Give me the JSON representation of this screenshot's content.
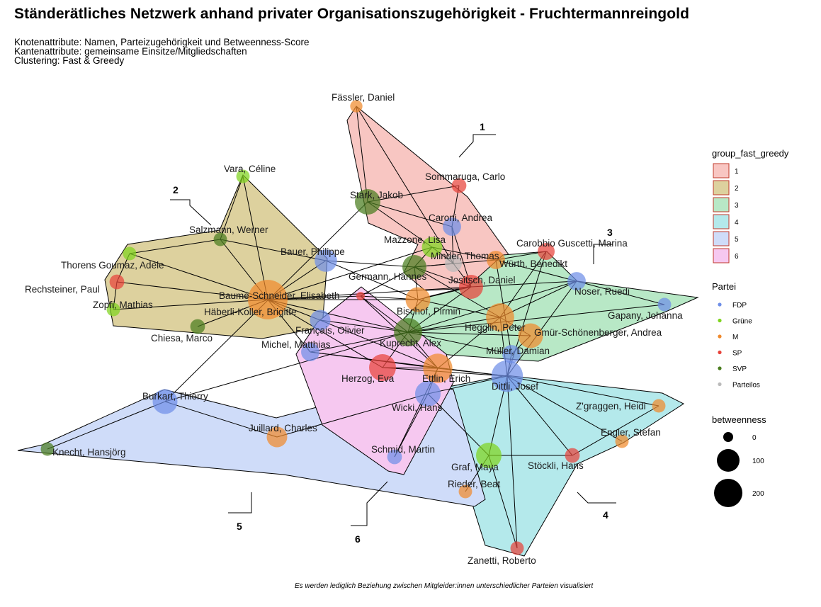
{
  "title": "Ständerätliches Netzwerk anhand privater Organisationszugehörigkeit - Fruchtermannreingold",
  "subtitle_lines": [
    "Knotenattribute: Namen, Parteizugehörigkeit und Betweenness-Score",
    "Kantenattribute: gemeinsame Einsitze/Mitgliedschaften",
    "Clustering: Fast & Greedy"
  ],
  "caption": "Es werden lediglich Beziehung zwischen Mitgleider:innen unterschiedlicher Parteien visualisiert",
  "colors": {
    "group_1": "#f8c6c2",
    "group_2": "#ddd19e",
    "group_3": "#b8e8c6",
    "group_4": "#b4e9eb",
    "group_5": "#cfdcf9",
    "group_6": "#f6c8f0",
    "FDP": "#6f8fe8",
    "Grüne": "#7fd41f",
    "M": "#f08a2c",
    "SP": "#e8423a",
    "SVP": "#4a7d1e",
    "Parteilos": "#bbbbbb"
  },
  "legend": {
    "group_title": "group_fast_greedy",
    "groups": [
      "1",
      "2",
      "3",
      "4",
      "5",
      "6"
    ],
    "party_title": "Partei",
    "parties": [
      "FDP",
      "Grüne",
      "M",
      "SP",
      "SVP",
      "Parteilos"
    ],
    "betweenness_title": "betweenness",
    "betweenness_values": [
      "0",
      "100",
      "200"
    ]
  },
  "group_labels": [
    "1",
    "2",
    "3",
    "4",
    "5",
    "6"
  ],
  "nodes": [
    {
      "name": "Fässler, Daniel",
      "party": "M",
      "group": "1",
      "betweenness": 3
    },
    {
      "name": "Sommaruga, Carlo",
      "party": "SP",
      "group": "1",
      "betweenness": 8
    },
    {
      "name": "Stark, Jakob",
      "party": "SVP",
      "group": "1",
      "betweenness": 60
    },
    {
      "name": "Caroni, Andrea",
      "party": "FDP",
      "group": "1",
      "betweenness": 20
    },
    {
      "name": "Mazzone, Lisa",
      "party": "Grüne",
      "group": "1",
      "betweenness": 30
    },
    {
      "name": "Minder, Thomas",
      "party": "Parteilos",
      "group": "1",
      "betweenness": 15
    },
    {
      "name": "Germann, Hannes",
      "party": "SVP",
      "group": "1",
      "betweenness": 50
    },
    {
      "name": "Jositsch, Daniel",
      "party": "SP",
      "group": "1",
      "betweenness": 50
    },
    {
      "name": "Bischof, Pirmin",
      "party": "M",
      "group": "1",
      "betweenness": 55
    },
    {
      "name": "Vara, Céline",
      "party": "Grüne",
      "group": "2",
      "betweenness": 5
    },
    {
      "name": "Salzmann, Werner",
      "party": "SVP",
      "group": "2",
      "betweenness": 5
    },
    {
      "name": "Bauer, Philippe",
      "party": "FDP",
      "group": "2",
      "betweenness": 40
    },
    {
      "name": "Thorens Goumaz, Adèle",
      "party": "Grüne",
      "group": "2",
      "betweenness": 5
    },
    {
      "name": "Rechsteiner, Paul",
      "party": "SP",
      "group": "2",
      "betweenness": 8
    },
    {
      "name": "Zopfi, Mathias",
      "party": "Grüne",
      "group": "2",
      "betweenness": 5
    },
    {
      "name": "Baume-Schneider, Elisabeth",
      "party": "SP",
      "group": "2",
      "betweenness": 0
    },
    {
      "name": "Häberli-Koller, Brigitte",
      "party": "M",
      "group": "2",
      "betweenness": 200
    },
    {
      "name": "Chiesa, Marco",
      "party": "SVP",
      "group": "2",
      "betweenness": 8
    },
    {
      "name": "Français, Olivier",
      "party": "FDP",
      "group": "2",
      "betweenness": 30
    },
    {
      "name": "Carobbio Guscetti, Marina",
      "party": "SP",
      "group": "3",
      "betweenness": 15
    },
    {
      "name": "Würth, Benedikt",
      "party": "M",
      "group": "3",
      "betweenness": 20
    },
    {
      "name": "Noser, Ruedi",
      "party": "FDP",
      "group": "3",
      "betweenness": 20
    },
    {
      "name": "Gapany, Johanna",
      "party": "FDP",
      "group": "3",
      "betweenness": 5
    },
    {
      "name": "Hegglin, Peter",
      "party": "M",
      "group": "3",
      "betweenness": 80
    },
    {
      "name": "Gmür-Schönenberger, Andrea",
      "party": "M",
      "group": "3",
      "betweenness": 55
    },
    {
      "name": "Kuprecht, Alex",
      "party": "SVP",
      "group": "3",
      "betweenness": 80
    },
    {
      "name": "Müller, Damian",
      "party": "FDP",
      "group": "4",
      "betweenness": 20
    },
    {
      "name": "Dittli, Josef",
      "party": "FDP",
      "group": "4",
      "betweenness": 110
    },
    {
      "name": "Z'graggen, Heidi",
      "party": "M",
      "group": "4",
      "betweenness": 5
    },
    {
      "name": "Engler, Stefan",
      "party": "M",
      "group": "4",
      "betweenness": 5
    },
    {
      "name": "Stöckli, Hans",
      "party": "SP",
      "group": "4",
      "betweenness": 8
    },
    {
      "name": "Graf, Maya",
      "party": "Grüne",
      "group": "4",
      "betweenness": 60
    },
    {
      "name": "Rieder, Beat",
      "party": "M",
      "group": "4",
      "betweenness": 5
    },
    {
      "name": "Zanetti, Roberto",
      "party": "SP",
      "group": "4",
      "betweenness": 5
    },
    {
      "name": "Burkart, Thierry",
      "party": "FDP",
      "group": "5",
      "betweenness": 55
    },
    {
      "name": "Juillard, Charles",
      "party": "M",
      "group": "5",
      "betweenness": 30
    },
    {
      "name": "Knecht, Hansjörg",
      "party": "SVP",
      "group": "5",
      "betweenness": 5
    },
    {
      "name": "Wicki, Hans",
      "party": "FDP",
      "group": "5",
      "betweenness": 60
    },
    {
      "name": "Michel, Matthias",
      "party": "FDP",
      "group": "6",
      "betweenness": 20
    },
    {
      "name": "Herzog, Eva",
      "party": "SP",
      "group": "6",
      "betweenness": 70
    },
    {
      "name": "Ettlin, Erich",
      "party": "M",
      "group": "6",
      "betweenness": 90
    },
    {
      "name": "Schmid, Martin",
      "party": "FDP",
      "group": "6",
      "betweenness": 8
    }
  ],
  "edges": [
    [
      "Fässler, Daniel",
      "Stark, Jakob"
    ],
    [
      "Fässler, Daniel",
      "Minder, Thomas"
    ],
    [
      "Sommaruga, Carlo",
      "Stark, Jakob"
    ],
    [
      "Sommaruga, Carlo",
      "Caroni, Andrea"
    ],
    [
      "Stark, Jakob",
      "Caroni, Andrea"
    ],
    [
      "Stark, Jakob",
      "Mazzone, Lisa"
    ],
    [
      "Stark, Jakob",
      "Burkart, Thierry"
    ],
    [
      "Caroni, Andrea",
      "Minder, Thomas"
    ],
    [
      "Caroni, Andrea",
      "Jositsch, Daniel"
    ],
    [
      "Mazzone, Lisa",
      "Minder, Thomas"
    ],
    [
      "Mazzone, Lisa",
      "Germann, Hannes"
    ],
    [
      "Mazzone, Lisa",
      "Würth, Benedikt"
    ],
    [
      "Minder, Thomas",
      "Germann, Hannes"
    ],
    [
      "Minder, Thomas",
      "Jositsch, Daniel"
    ],
    [
      "Germann, Hannes",
      "Jositsch, Daniel"
    ],
    [
      "Germann, Hannes",
      "Bischof, Pirmin"
    ],
    [
      "Germann, Hannes",
      "Baume-Schneider, Elisabeth"
    ],
    [
      "Germann, Hannes",
      "Hegglin, Peter"
    ],
    [
      "Germann, Hannes",
      "Würth, Benedikt"
    ],
    [
      "Jositsch, Daniel",
      "Bischof, Pirmin"
    ],
    [
      "Jositsch, Daniel",
      "Noser, Ruedi"
    ],
    [
      "Jositsch, Daniel",
      "Kuprecht, Alex"
    ],
    [
      "Bischof, Pirmin",
      "Häberli-Koller, Brigitte"
    ],
    [
      "Bischof, Pirmin",
      "Hegglin, Peter"
    ],
    [
      "Bischof, Pirmin",
      "Kuprecht, Alex"
    ],
    [
      "Vara, Céline",
      "Häberli-Koller, Brigitte"
    ],
    [
      "Vara, Céline",
      "Salzmann, Werner"
    ],
    [
      "Salzmann, Werner",
      "Bauer, Philippe"
    ],
    [
      "Salzmann, Werner",
      "Häberli-Koller, Brigitte"
    ],
    [
      "Salzmann, Werner",
      "Thorens Goumaz, Adèle"
    ],
    [
      "Bauer, Philippe",
      "Häberli-Koller, Brigitte"
    ],
    [
      "Bauer, Philippe",
      "Germann, Hannes"
    ],
    [
      "Bauer, Philippe",
      "Bischof, Pirmin"
    ],
    [
      "Thorens Goumaz, Adèle",
      "Häberli-Koller, Brigitte"
    ],
    [
      "Thorens Goumaz, Adèle",
      "Rechsteiner, Paul"
    ],
    [
      "Rechsteiner, Paul",
      "Häberli-Koller, Brigitte"
    ],
    [
      "Rechsteiner, Paul",
      "Zopfi, Mathias"
    ],
    [
      "Zopfi, Mathias",
      "Häberli-Koller, Brigitte"
    ],
    [
      "Chiesa, Marco",
      "Häberli-Koller, Brigitte"
    ],
    [
      "Häberli-Koller, Brigitte",
      "Baume-Schneider, Elisabeth"
    ],
    [
      "Häberli-Koller, Brigitte",
      "Français, Olivier"
    ],
    [
      "Häberli-Koller, Brigitte",
      "Kuprecht, Alex"
    ],
    [
      "Häberli-Koller, Brigitte",
      "Herzog, Eva"
    ],
    [
      "Häberli-Koller, Brigitte",
      "Jositsch, Daniel"
    ],
    [
      "Häberli-Koller, Brigitte",
      "Mazzone, Lisa"
    ],
    [
      "Baume-Schneider, Elisabeth",
      "Bischof, Pirmin"
    ],
    [
      "Baume-Schneider, Elisabeth",
      "Kuprecht, Alex"
    ],
    [
      "Baume-Schneider, Elisabeth",
      "Ettlin, Erich"
    ],
    [
      "Français, Olivier",
      "Kuprecht, Alex"
    ],
    [
      "Français, Olivier",
      "Ettlin, Erich"
    ],
    [
      "Michel, Matthias",
      "Häberli-Koller, Brigitte"
    ],
    [
      "Michel, Matthias",
      "Ettlin, Erich"
    ],
    [
      "Michel, Matthias",
      "Kuprecht, Alex"
    ],
    [
      "Michel, Matthias",
      "Dittli, Josef"
    ],
    [
      "Herzog, Eva",
      "Ettlin, Erich"
    ],
    [
      "Herzog, Eva",
      "Dittli, Josef"
    ],
    [
      "Herzog, Eva",
      "Kuprecht, Alex"
    ],
    [
      "Ettlin, Erich",
      "Dittli, Josef"
    ],
    [
      "Ettlin, Erich",
      "Kuprecht, Alex"
    ],
    [
      "Ettlin, Erich",
      "Wicki, Hans"
    ],
    [
      "Ettlin, Erich",
      "Hegglin, Peter"
    ],
    [
      "Schmid, Martin",
      "Ettlin, Erich"
    ],
    [
      "Schmid, Martin",
      "Wicki, Hans"
    ],
    [
      "Kuprecht, Alex",
      "Hegglin, Peter"
    ],
    [
      "Kuprecht, Alex",
      "Gmür-Schönenberger, Andrea"
    ],
    [
      "Kuprecht, Alex",
      "Gapany, Johanna"
    ],
    [
      "Kuprecht, Alex",
      "Müller, Damian"
    ],
    [
      "Kuprecht, Alex",
      "Noser, Ruedi"
    ],
    [
      "Hegglin, Peter",
      "Noser, Ruedi"
    ],
    [
      "Hegglin, Peter",
      "Gmür-Schönenberger, Andrea"
    ],
    [
      "Hegglin, Peter",
      "Dittli, Josef"
    ],
    [
      "Hegglin, Peter",
      "Carobbio Guscetti, Marina"
    ],
    [
      "Würth, Benedikt",
      "Noser, Ruedi"
    ],
    [
      "Würth, Benedikt",
      "Carobbio Guscetti, Marina"
    ],
    [
      "Würth, Benedikt",
      "Müller, Damian"
    ],
    [
      "Carobbio Guscetti, Marina",
      "Dittli, Josef"
    ],
    [
      "Noser, Ruedi",
      "Gapany, Johanna"
    ],
    [
      "Noser, Ruedi",
      "Dittli, Josef"
    ],
    [
      "Gmür-Schönenberger, Andrea",
      "Müller, Damian"
    ],
    [
      "Müller, Damian",
      "Dittli, Josef"
    ],
    [
      "Dittli, Josef",
      "Z'graggen, Heidi"
    ],
    [
      "Dittli, Josef",
      "Engler, Stefan"
    ],
    [
      "Dittli, Josef",
      "Stöckli, Hans"
    ],
    [
      "Dittli, Josef",
      "Graf, Maya"
    ],
    [
      "Dittli, Josef",
      "Zanetti, Roberto"
    ],
    [
      "Dittli, Josef",
      "Wicki, Hans"
    ],
    [
      "Graf, Maya",
      "Stöckli, Hans"
    ],
    [
      "Graf, Maya",
      "Wicki, Hans"
    ],
    [
      "Graf, Maya",
      "Zanetti, Roberto"
    ],
    [
      "Graf, Maya",
      "Rieder, Beat"
    ],
    [
      "Wicki, Hans",
      "Juillard, Charles"
    ],
    [
      "Burkart, Thierry",
      "Juillard, Charles"
    ],
    [
      "Burkart, Thierry",
      "Knecht, Hansjörg"
    ],
    [
      "Burkart, Thierry",
      "Kuprecht, Alex"
    ],
    [
      "Stöckli, Hans",
      "Z'graggen, Heidi"
    ]
  ]
}
